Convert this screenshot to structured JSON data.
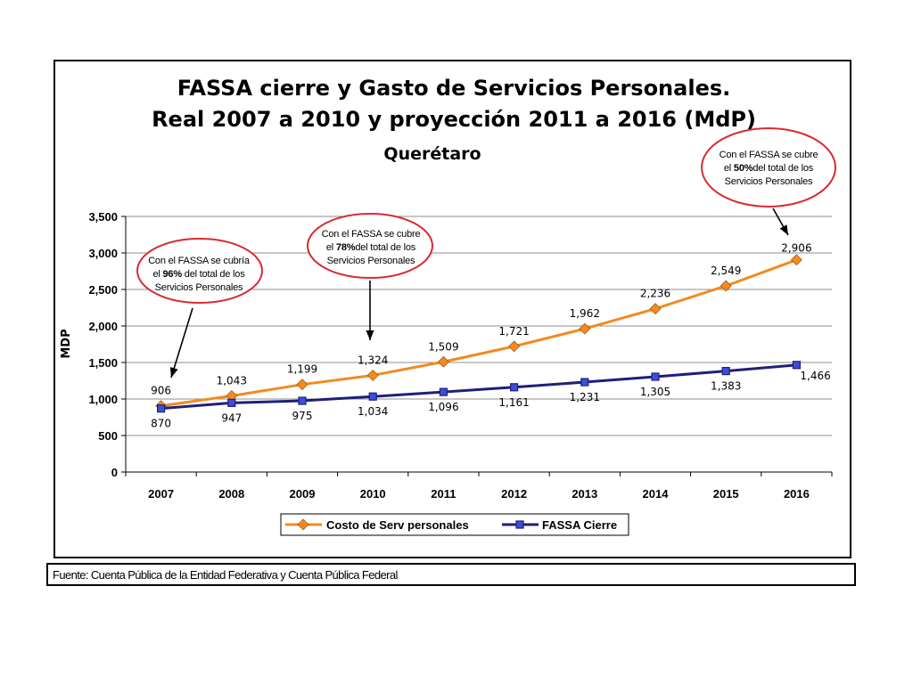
{
  "chart_data": {
    "type": "line",
    "title": "FASSA cierre y Gasto de Servicios Personales.",
    "subtitle": "Real 2007 a 2010 y proyección 2011 a 2016 (MdP)",
    "subtitle2": "Querétaro",
    "ylabel": "MDP",
    "xlabel": "",
    "ylim": [
      0,
      3500
    ],
    "yticks": [
      0,
      500,
      1000,
      1500,
      2000,
      2500,
      3000,
      3500
    ],
    "ytick_labels": [
      "0",
      "500",
      "1,000",
      "1,500",
      "2,000",
      "2,500",
      "3,000",
      "3,500"
    ],
    "categories": [
      "2007",
      "2008",
      "2009",
      "2010",
      "2011",
      "2012",
      "2013",
      "2014",
      "2015",
      "2016"
    ],
    "grid": true,
    "legend_position": "bottom",
    "series": [
      {
        "name": "Costo de Serv personales",
        "color": "#F28A1F",
        "marker": "diamond",
        "values": [
          906,
          1043,
          1199,
          1324,
          1509,
          1721,
          1962,
          2236,
          2549,
          2906
        ],
        "labels": [
          "906",
          "1,043",
          "1,199",
          "1,324",
          "1,509",
          "1,721",
          "1,962",
          "2,236",
          "2,549",
          "2,906"
        ]
      },
      {
        "name": "FASSA Cierre",
        "color": "#1F1F7A",
        "marker": "square",
        "values": [
          870,
          947,
          975,
          1034,
          1096,
          1161,
          1231,
          1305,
          1383,
          1466
        ],
        "labels": [
          "870",
          "947",
          "975",
          "1,034",
          "1,096",
          "1,161",
          "1,231",
          "1,305",
          "1,383",
          "1,466"
        ]
      }
    ],
    "annotations": [
      {
        "lines": [
          "Con el FASSA se cubría",
          "el 96%  del total de los",
          "Servicios Personales"
        ],
        "highlight": "96%",
        "category": "2007",
        "border_color": "#D72B33"
      },
      {
        "lines": [
          "Con el FASSA se cubre",
          "el 78%del total de los",
          "Servicios Personales"
        ],
        "highlight": "78%",
        "category": "2010",
        "border_color": "#D72B33"
      },
      {
        "lines": [
          "Con el FASSA se cubre",
          "el 50%del total de los",
          "Servicios Personales"
        ],
        "highlight": "50%",
        "category": "2016",
        "border_color": "#D72B33"
      }
    ]
  },
  "source": "Fuente: Cuenta Pública de la Entidad Federativa y  Cuenta Pública Federal"
}
